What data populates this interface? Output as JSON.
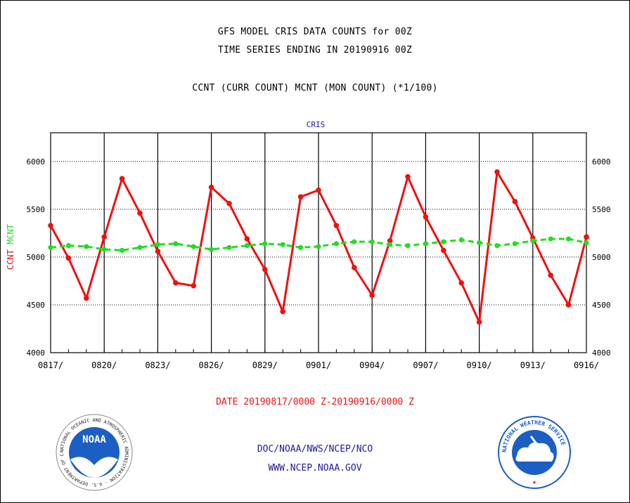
{
  "header": {
    "title_line1": "GFS MODEL CRIS DATA COUNTS for 00Z",
    "title_line2": "TIME SERIES ENDING IN 20190916 00Z",
    "subtitle": "CCNT (CURR COUNT) MCNT (MON COUNT) (*1/100)"
  },
  "footer": {
    "date_range": "DATE 20190817/0000 Z-20190916/0000 Z",
    "org": "DOC/NOAA/NWS/NCEP/NCO",
    "url": "WWW.NCEP.NOAA.GOV"
  },
  "logos": {
    "noaa_text": "NOAA",
    "noaa_ring": "NATIONAL OCEANIC AND ATMOSPHERIC ADMINISTRATION · U.S. DEPARTMENT OF COMMERCE",
    "nws_ring": "NATIONAL WEATHER SERVICE"
  },
  "colors": {
    "ccnt": "#ee1111",
    "mcnt": "#22dd22",
    "plot_label": "#1a1aa0",
    "footer_red": "#ee1111",
    "footer_blue": "#1a1aa0"
  },
  "chart_data": {
    "type": "line",
    "plot_label": "CRIS",
    "ylabel_parts": [
      "CCNT",
      "MCNT"
    ],
    "ylim": [
      4000,
      6300
    ],
    "yticks": [
      4000,
      4500,
      5000,
      5500,
      6000
    ],
    "xticks": [
      "0817/",
      "0820/",
      "0823/",
      "0826/",
      "0829/",
      "0901/",
      "0904/",
      "0907/",
      "0910/",
      "0913/",
      "0916/"
    ],
    "grid": true,
    "x": [
      "0817",
      "0818",
      "0819",
      "0820",
      "0821",
      "0822",
      "0823",
      "0824",
      "0825",
      "0826",
      "0827",
      "0828",
      "0829",
      "0830",
      "0831",
      "0901",
      "0902",
      "0903",
      "0904",
      "0905",
      "0906",
      "0907",
      "0908",
      "0909",
      "0910",
      "0911",
      "0912",
      "0913",
      "0914",
      "0915",
      "0916"
    ],
    "series": [
      {
        "name": "CCNT",
        "color": "#ee1111",
        "values": [
          5330,
          4990,
          4570,
          5210,
          5820,
          5460,
          5060,
          4730,
          4700,
          5730,
          5560,
          5190,
          4870,
          4430,
          5630,
          5700,
          5330,
          4890,
          4600,
          5170,
          5840,
          5420,
          5070,
          4730,
          4320,
          5890,
          5580,
          5200,
          4810,
          4500,
          5210
        ]
      },
      {
        "name": "MCNT",
        "color": "#22dd22",
        "values": [
          5100,
          5120,
          5110,
          5080,
          5070,
          5100,
          5130,
          5140,
          5110,
          5080,
          5100,
          5120,
          5140,
          5130,
          5100,
          5110,
          5140,
          5160,
          5160,
          5130,
          5120,
          5140,
          5160,
          5180,
          5150,
          5120,
          5140,
          5170,
          5190,
          5190,
          5150
        ]
      }
    ]
  }
}
